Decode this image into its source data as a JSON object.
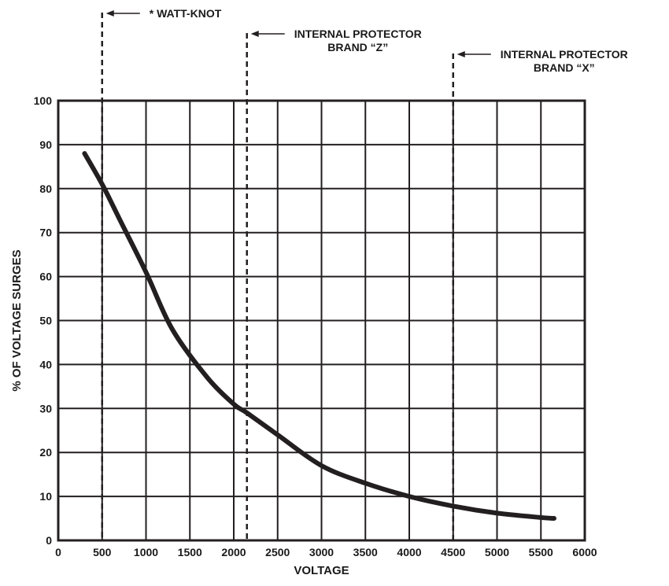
{
  "chart_data": {
    "type": "line",
    "title": "",
    "xlabel": "VOLTAGE",
    "ylabel": "% OF VOLTAGE SURGES",
    "xlim": [
      0,
      6000
    ],
    "ylim": [
      0,
      100
    ],
    "grid": true,
    "x_ticks": [
      0,
      500,
      1000,
      1500,
      2000,
      2500,
      3000,
      3500,
      4000,
      4500,
      5000,
      5500,
      6000
    ],
    "y_ticks": [
      0,
      10,
      20,
      30,
      40,
      50,
      60,
      70,
      80,
      90,
      100
    ],
    "series": [
      {
        "x": [
          300,
          500,
          700,
          1000,
          1300,
          1700,
          2000,
          2150,
          2500,
          3000,
          3500,
          4000,
          4500,
          5000,
          5500,
          5650
        ],
        "y": [
          88,
          81,
          73,
          61,
          48,
          37,
          31,
          29,
          24,
          17,
          13,
          10,
          7.8,
          6.2,
          5.2,
          5
        ]
      }
    ],
    "reference_lines": [
      {
        "x": 500,
        "label": [
          "* WATT-KNOT"
        ]
      },
      {
        "x": 2150,
        "label": [
          "INTERNAL PROTECTOR",
          "BRAND “Z”"
        ]
      },
      {
        "x": 4500,
        "label": [
          "INTERNAL PROTECTOR",
          "BRAND “X”"
        ]
      }
    ],
    "colors": {
      "line": "#231f20",
      "grid": "#231f20"
    }
  }
}
